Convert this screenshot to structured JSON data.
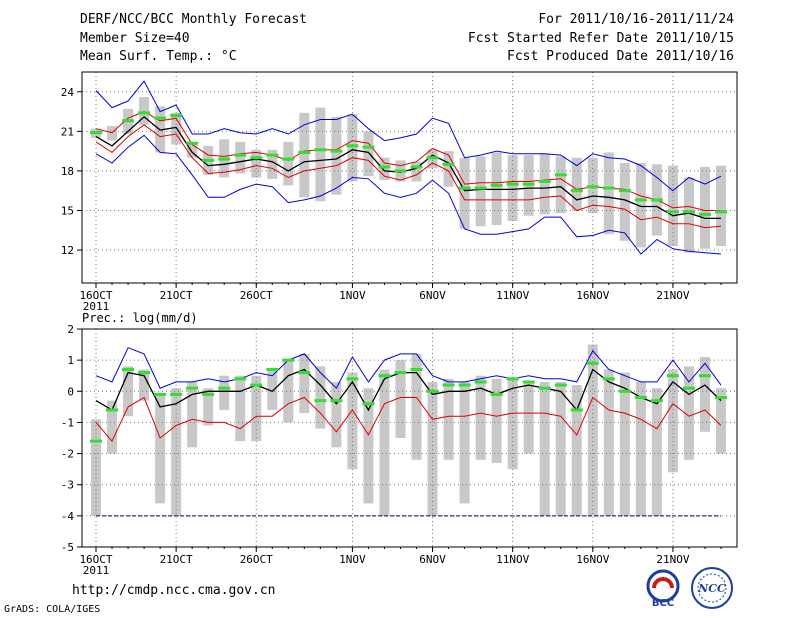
{
  "header": {
    "title": "DERF/NCC/BCC Monthly Forecast",
    "member_size": "Member Size=40",
    "variable": "Mean Surf. Temp.: °C",
    "forecast_period": "For 2011/10/16-2011/11/24",
    "start_date": "Fcst Started Refer Date 2011/10/15",
    "produced_date": "Fcst Produced Date 2011/10/16"
  },
  "footer": {
    "url": "http://cmdp.ncc.cma.gov.cn",
    "grads": "GrADS: COLA/IGES",
    "logo_bcc": "BCC",
    "logo_ncc": "NCC"
  },
  "colors": {
    "envelope": "#0000e0",
    "mean": "#000000",
    "lower": "#e00000",
    "box": "#c8c8c8",
    "obs": "#33dd33"
  },
  "chart_data": [
    {
      "name": "temperature",
      "type": "line",
      "title": "Mean Surf. Temp.: °C",
      "ylim": [
        9.5,
        25.5
      ],
      "yticks": [
        12,
        15,
        18,
        21,
        24
      ],
      "xticks": [
        {
          "day": 0,
          "label": "16OCT",
          "sub": "2011"
        },
        {
          "day": 5,
          "label": "21OCT"
        },
        {
          "day": 10,
          "label": "26OCT"
        },
        {
          "day": 16,
          "label": "1NOV"
        },
        {
          "day": 21,
          "label": "6NOV"
        },
        {
          "day": 26,
          "label": "11NOV"
        },
        {
          "day": 31,
          "label": "16NOV"
        },
        {
          "day": 36,
          "label": "21NOV"
        }
      ],
      "days": [
        0,
        1,
        2,
        3,
        4,
        5,
        6,
        7,
        8,
        9,
        10,
        11,
        12,
        13,
        14,
        15,
        16,
        17,
        18,
        19,
        20,
        21,
        22,
        23,
        24,
        25,
        26,
        27,
        28,
        29,
        30,
        31,
        32,
        33,
        34,
        35,
        36,
        37,
        38,
        39
      ],
      "max": [
        24.1,
        22.8,
        23.3,
        24.8,
        22.5,
        23.0,
        20.8,
        20.8,
        21.2,
        20.9,
        20.8,
        21.2,
        20.8,
        21.5,
        21.9,
        21.9,
        22.3,
        21.2,
        20.3,
        20.5,
        20.8,
        22.0,
        21.6,
        19.0,
        19.2,
        19.5,
        19.3,
        19.3,
        19.3,
        19.2,
        18.4,
        19.3,
        19.0,
        18.9,
        18.4,
        17.5,
        16.5,
        17.5,
        17.0,
        17.6
      ],
      "q3": [
        21.2,
        20.9,
        22.0,
        22.5,
        21.8,
        22.0,
        20.0,
        19.2,
        19.1,
        19.3,
        19.4,
        19.2,
        18.8,
        19.5,
        19.6,
        19.6,
        20.3,
        20.1,
        18.6,
        18.4,
        18.7,
        19.7,
        19.2,
        17.0,
        17.1,
        17.1,
        17.2,
        17.2,
        17.3,
        17.4,
        16.6,
        16.8,
        16.7,
        16.6,
        16.1,
        15.8,
        15.2,
        15.3,
        15.0,
        15.0
      ],
      "mean": [
        20.6,
        19.9,
        21.0,
        22.1,
        21.1,
        21.3,
        19.4,
        18.4,
        18.5,
        18.7,
        18.9,
        18.7,
        18.0,
        18.7,
        18.8,
        18.9,
        19.6,
        19.4,
        18.0,
        17.9,
        18.2,
        19.2,
        18.6,
        16.5,
        16.6,
        16.6,
        16.6,
        16.7,
        16.7,
        16.8,
        15.8,
        16.1,
        16.0,
        15.8,
        15.3,
        15.3,
        14.6,
        14.8,
        14.4,
        14.4
      ],
      "q1": [
        20.2,
        19.4,
        20.6,
        21.5,
        20.6,
        20.8,
        19.0,
        17.8,
        17.9,
        18.1,
        18.4,
        18.2,
        17.5,
        18.0,
        18.2,
        18.4,
        19.0,
        18.8,
        17.6,
        17.3,
        17.7,
        18.6,
        18.0,
        15.8,
        15.8,
        15.8,
        15.8,
        15.8,
        16.0,
        16.1,
        15.0,
        15.4,
        15.3,
        15.1,
        14.3,
        14.5,
        14.0,
        14.0,
        13.7,
        13.8
      ],
      "min": [
        19.3,
        18.6,
        19.8,
        20.7,
        19.4,
        19.3,
        17.7,
        16.0,
        16.0,
        16.6,
        17.0,
        16.8,
        15.6,
        15.8,
        16.1,
        16.7,
        17.5,
        17.4,
        16.3,
        16.0,
        16.3,
        17.3,
        16.3,
        13.6,
        13.2,
        13.2,
        13.4,
        13.6,
        14.5,
        14.5,
        13.0,
        13.1,
        13.5,
        13.3,
        11.7,
        12.8,
        12.1,
        11.9,
        11.8,
        11.7
      ],
      "box_low": [
        20.5,
        20.3,
        20.8,
        21.5,
        19.4,
        20.0,
        19.0,
        17.7,
        17.5,
        17.8,
        17.5,
        17.4,
        16.9,
        16.0,
        15.7,
        16.2,
        17.2,
        17.6,
        17.3,
        17.2,
        17.2,
        18.2,
        16.8,
        13.6,
        13.8,
        13.9,
        14.2,
        14.6,
        14.7,
        14.8,
        15.0,
        14.8,
        13.2,
        12.7,
        12.2,
        13.1,
        12.3,
        11.8,
        12.1,
        12.3
      ],
      "box_high": [
        21.2,
        21.4,
        22.7,
        23.6,
        22.9,
        22.4,
        20.2,
        19.9,
        20.4,
        20.2,
        19.6,
        19.6,
        20.2,
        22.4,
        22.8,
        22.1,
        22.3,
        21.0,
        19.0,
        18.8,
        18.7,
        19.6,
        19.5,
        19.0,
        19.1,
        19.4,
        19.2,
        19.2,
        19.3,
        19.1,
        19.0,
        19.0,
        19.4,
        18.6,
        18.6,
        18.5,
        18.4,
        17.5,
        18.3,
        18.4
      ],
      "obs": [
        20.9,
        null,
        21.8,
        22.4,
        22.0,
        22.2,
        20.1,
        18.8,
        18.9,
        19.2,
        19.0,
        19.2,
        18.9,
        19.4,
        19.6,
        19.5,
        19.9,
        19.8,
        18.3,
        18.0,
        18.3,
        19.0,
        18.5,
        16.7,
        16.7,
        16.9,
        17.0,
        17.0,
        17.2,
        17.7,
        16.5,
        16.8,
        16.7,
        16.5,
        15.8,
        15.8,
        14.9,
        14.9,
        14.7,
        14.9
      ]
    },
    {
      "name": "precipitation",
      "type": "line",
      "title": "Prec.: log(mm/d)",
      "ylim": [
        -5,
        2
      ],
      "yticks": [
        -5,
        -4,
        -3,
        -2,
        -1,
        0,
        1,
        2
      ],
      "xticks": [
        {
          "day": 0,
          "label": "16OCT",
          "sub": "2011"
        },
        {
          "day": 5,
          "label": "21OCT"
        },
        {
          "day": 10,
          "label": "26OCT"
        },
        {
          "day": 16,
          "label": "1NOV"
        },
        {
          "day": 21,
          "label": "6NOV"
        },
        {
          "day": 26,
          "label": "11NOV"
        },
        {
          "day": 31,
          "label": "16NOV"
        },
        {
          "day": 36,
          "label": "21NOV"
        }
      ],
      "days": [
        0,
        1,
        2,
        3,
        4,
        5,
        6,
        7,
        8,
        9,
        10,
        11,
        12,
        13,
        14,
        15,
        16,
        17,
        18,
        19,
        20,
        21,
        22,
        23,
        24,
        25,
        26,
        27,
        28,
        29,
        30,
        31,
        32,
        33,
        34,
        35,
        36,
        37,
        38,
        39
      ],
      "max": [
        0.5,
        0.3,
        1.4,
        1.2,
        0.1,
        0.3,
        0.3,
        0.4,
        0.3,
        0.4,
        0.6,
        0.5,
        1.0,
        1.2,
        0.6,
        0.1,
        1.1,
        0.3,
        1.0,
        1.2,
        1.2,
        0.5,
        0.3,
        0.3,
        0.4,
        0.5,
        0.4,
        0.5,
        0.4,
        0.4,
        0.3,
        1.3,
        0.7,
        0.5,
        0.3,
        0.3,
        1.0,
        0.3,
        0.9,
        0.2
      ],
      "mean": [
        -0.3,
        -0.6,
        0.6,
        0.5,
        -0.5,
        -0.4,
        -0.1,
        0.0,
        0.0,
        0.0,
        0.2,
        0.0,
        0.5,
        0.7,
        0.2,
        -0.4,
        0.3,
        -0.6,
        0.4,
        0.6,
        0.6,
        -0.1,
        0.0,
        0.0,
        0.1,
        -0.1,
        0.1,
        0.2,
        0.1,
        0.0,
        -0.6,
        0.7,
        0.3,
        0.1,
        -0.2,
        -0.4,
        0.3,
        -0.1,
        0.2,
        -0.3
      ],
      "min": [
        -1.0,
        -1.6,
        -0.5,
        -0.2,
        -1.5,
        -1.1,
        -0.9,
        -1.0,
        -1.0,
        -1.2,
        -0.8,
        -0.8,
        -0.4,
        -0.2,
        -0.7,
        -1.3,
        -0.6,
        -1.4,
        -0.4,
        -0.2,
        -0.2,
        -0.9,
        -0.8,
        -0.8,
        -0.7,
        -0.8,
        -0.7,
        -0.7,
        -0.7,
        -0.8,
        -1.4,
        -0.2,
        -0.6,
        -0.7,
        -0.9,
        -1.2,
        -0.4,
        -0.8,
        -0.6,
        -1.1
      ],
      "box_low": [
        -4.0,
        -2.0,
        -0.8,
        -0.3,
        -3.6,
        -4.0,
        -1.8,
        -1.1,
        -0.6,
        -1.6,
        -1.6,
        -0.6,
        -1.0,
        -0.7,
        -1.2,
        -1.8,
        -2.5,
        -3.6,
        -4.0,
        -1.5,
        -2.2,
        -4.0,
        -2.2,
        -3.6,
        -2.2,
        -2.3,
        -2.5,
        -2.0,
        -4.0,
        -4.0,
        -4.0,
        -4.0,
        -4.0,
        -4.0,
        -4.0,
        -4.0,
        -2.6,
        -2.2,
        -1.3,
        -2.0
      ],
      "box_high": [
        -0.9,
        -0.3,
        0.8,
        0.7,
        -0.1,
        0.1,
        0.3,
        0.1,
        0.5,
        0.5,
        0.5,
        0.7,
        1.0,
        1.2,
        0.8,
        0.3,
        0.6,
        0.1,
        0.7,
        1.0,
        1.2,
        0.3,
        0.4,
        0.3,
        0.5,
        0.4,
        0.4,
        0.3,
        0.3,
        0.3,
        0.2,
        1.5,
        0.7,
        0.6,
        0.3,
        0.1,
        0.7,
        0.8,
        1.1,
        0.1
      ],
      "obs": [
        -1.6,
        -0.6,
        0.7,
        0.6,
        -0.1,
        -0.1,
        0.1,
        -0.1,
        0.1,
        0.4,
        0.2,
        0.7,
        1.0,
        0.6,
        -0.3,
        -0.3,
        0.4,
        -0.4,
        0.5,
        0.6,
        0.7,
        0.0,
        0.2,
        0.2,
        0.3,
        -0.1,
        0.4,
        0.3,
        0.1,
        0.2,
        -0.6,
        0.9,
        0.4,
        0.0,
        -0.2,
        -0.3,
        0.5,
        0.1,
        0.5,
        -0.2
      ]
    }
  ]
}
